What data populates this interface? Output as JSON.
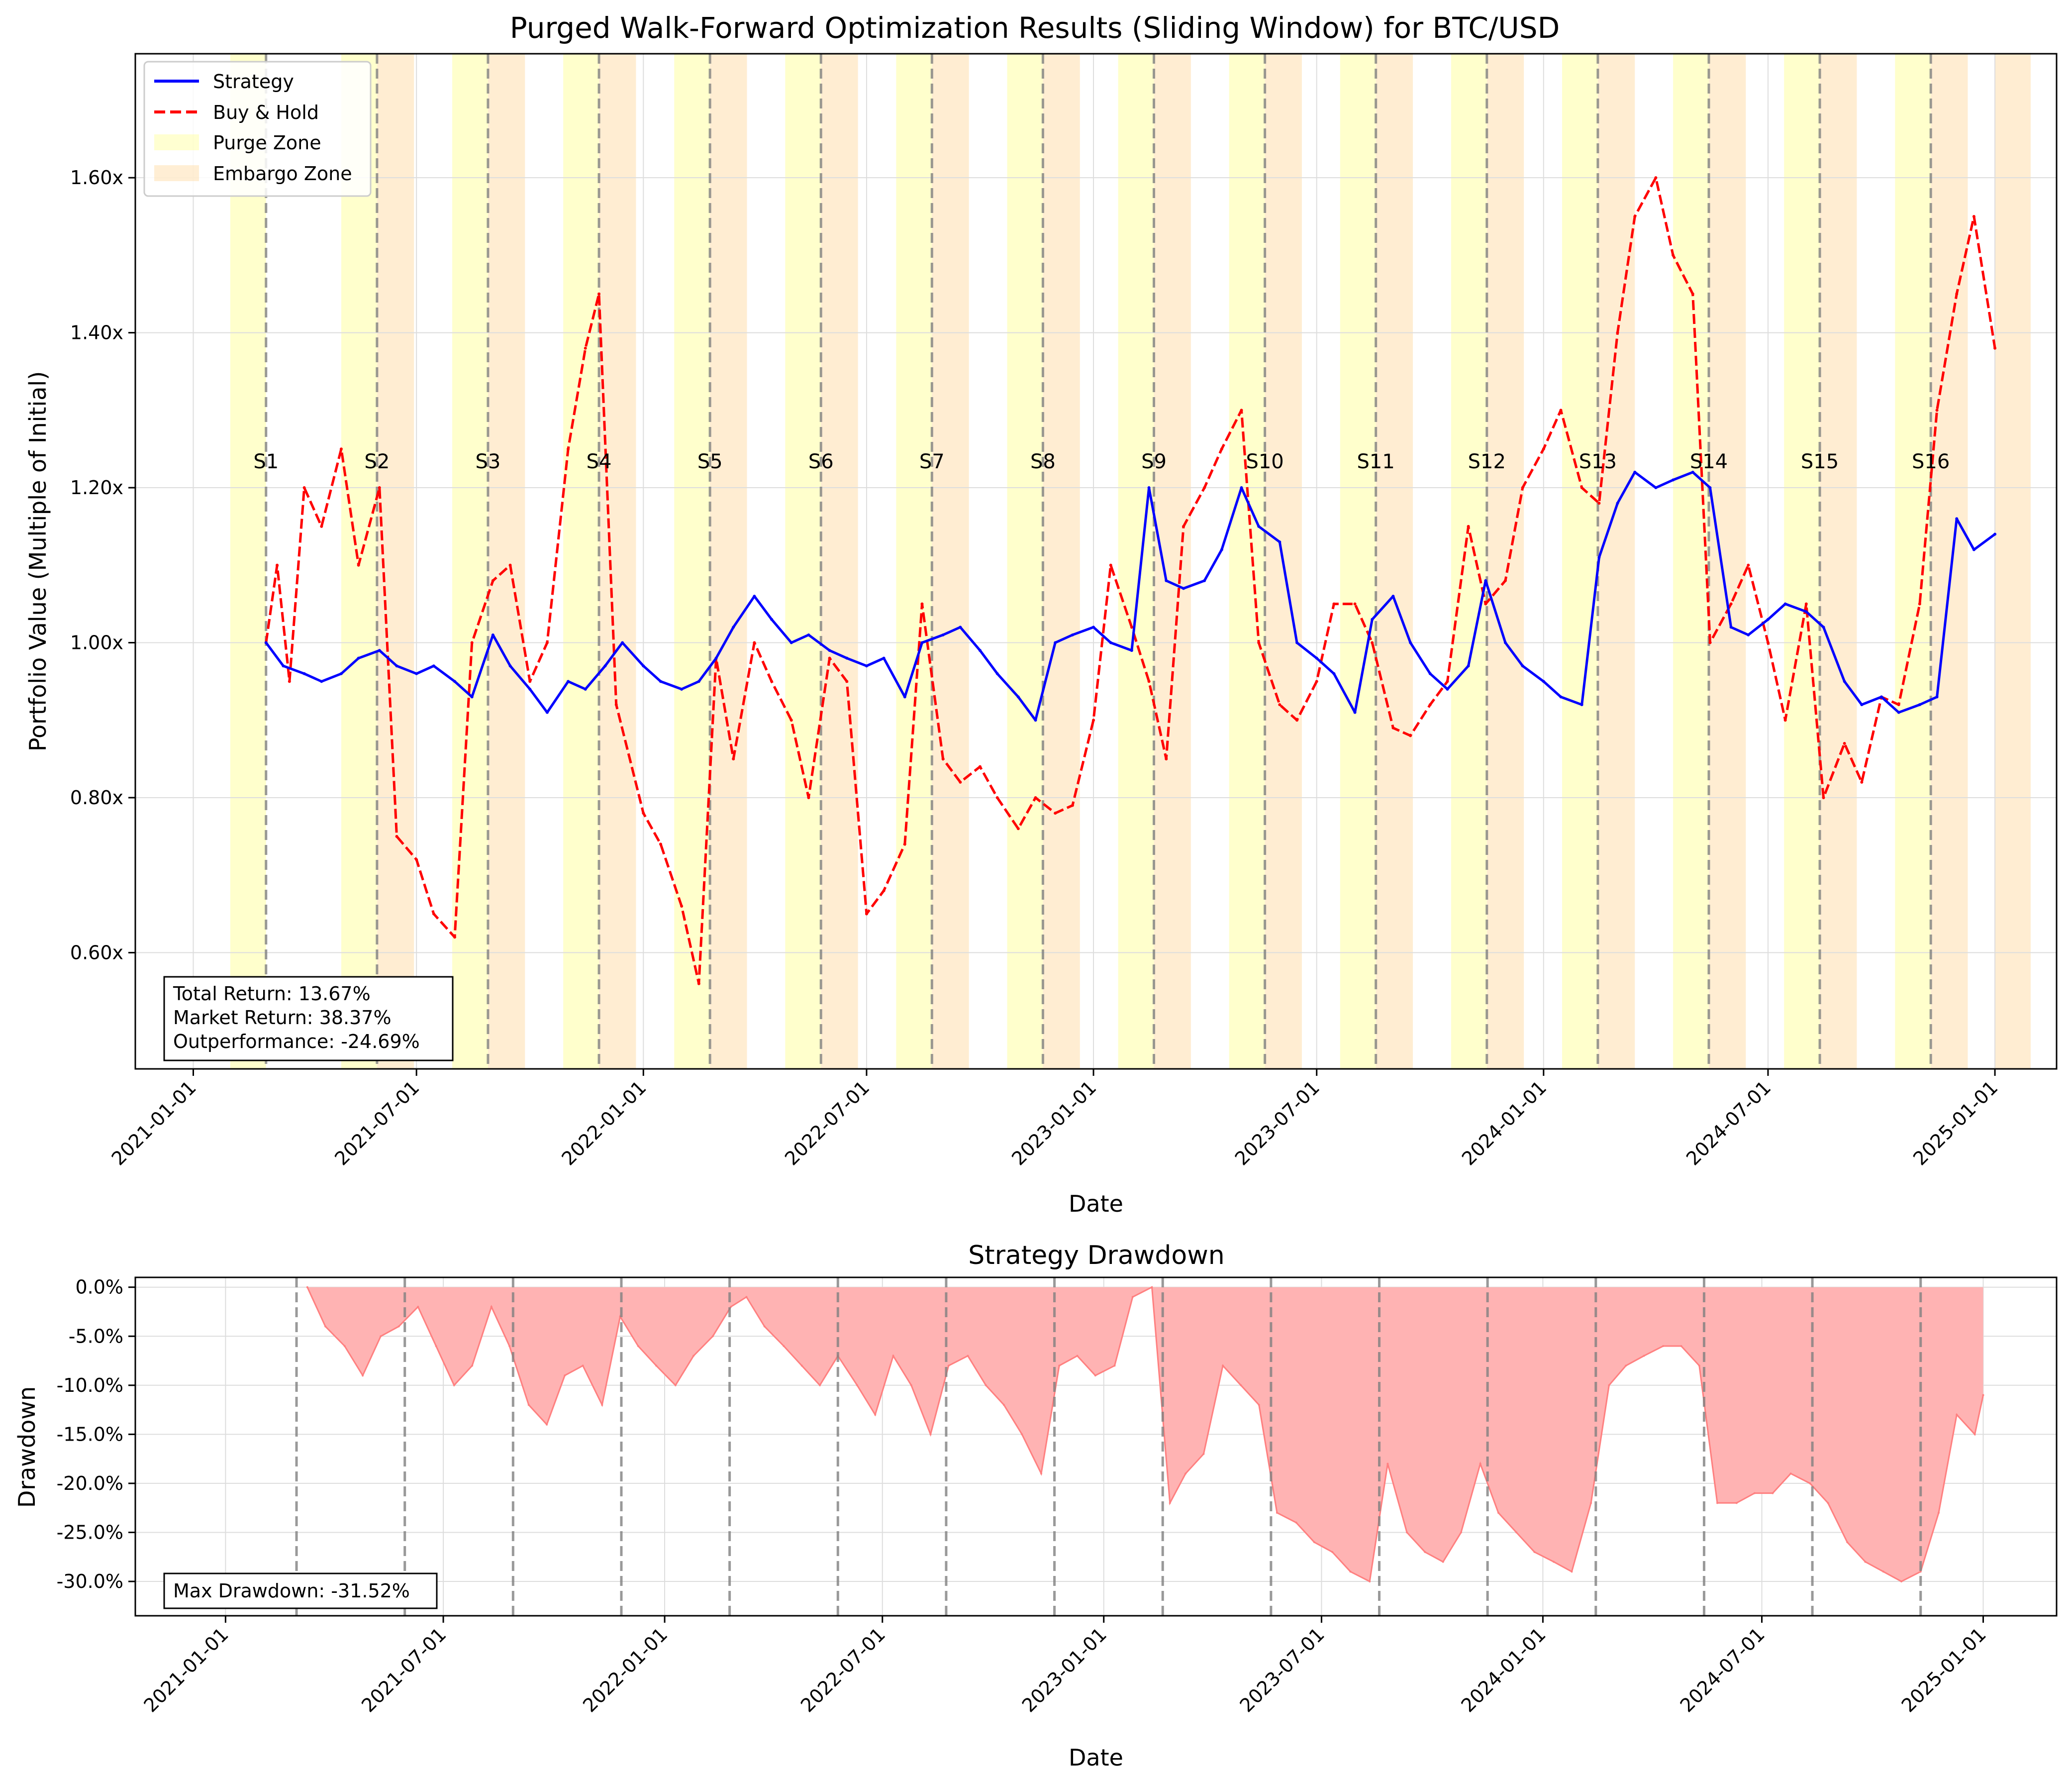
{
  "chart_data": [
    {
      "type": "line",
      "title": "Purged Walk-Forward Optimization Results (Sliding Window) for BTC/USD",
      "xlabel": "Date",
      "ylabel": "Portfolio Value (Multiple of Initial)",
      "x_range": [
        "2020-11-15",
        "2025-02-20"
      ],
      "ylim": [
        0.45,
        1.76
      ],
      "x_ticks": [
        "2021-01-01",
        "2021-07-01",
        "2022-01-01",
        "2022-07-01",
        "2023-01-01",
        "2023-07-01",
        "2024-01-01",
        "2024-07-01",
        "2025-01-01"
      ],
      "y_ticks": [
        0.6,
        0.8,
        1.0,
        1.2,
        1.4,
        1.6
      ],
      "y_tick_labels": [
        "0.60x",
        "0.80x",
        "1.00x",
        "1.20x",
        "1.40x",
        "1.60x"
      ],
      "grid": true,
      "legend_position": "top-left",
      "legend": [
        {
          "label": "Strategy",
          "style": "solid",
          "color": "#0000ff"
        },
        {
          "label": "Buy & Hold",
          "style": "dashed",
          "color": "#ff0000"
        },
        {
          "label": "Purge Zone",
          "style": "patch",
          "color": "#ffff99"
        },
        {
          "label": "Embargo Zone",
          "style": "patch",
          "color": "#ffd9a0"
        }
      ],
      "colors": {
        "strategy": "#0000ff",
        "buy_hold": "#ff0000",
        "purge": "#ffffcc",
        "embargo": "#ffedd2",
        "split_line": "#808080"
      },
      "split_labels": [
        "S1",
        "S2",
        "S3",
        "S4",
        "S5",
        "S6",
        "S7",
        "S8",
        "S9",
        "S10",
        "S11",
        "S12",
        "S13",
        "S14",
        "S15",
        "S16"
      ],
      "split_dates": [
        "2021-03-01",
        "2021-05-30",
        "2021-08-28",
        "2021-11-26",
        "2022-02-24",
        "2022-05-25",
        "2022-08-23",
        "2022-11-21",
        "2023-02-19",
        "2023-05-20",
        "2023-08-18",
        "2023-11-16",
        "2024-02-14",
        "2024-05-14",
        "2024-08-12",
        "2024-11-10"
      ],
      "purge_zones": [
        [
          "2021-01-31",
          "2021-03-01"
        ],
        [
          "2021-05-01",
          "2021-05-30"
        ],
        [
          "2021-07-30",
          "2021-08-28"
        ],
        [
          "2021-10-28",
          "2021-11-26"
        ],
        [
          "2022-01-26",
          "2022-02-24"
        ],
        [
          "2022-04-26",
          "2022-05-25"
        ],
        [
          "2022-07-25",
          "2022-08-23"
        ],
        [
          "2022-10-23",
          "2022-11-21"
        ],
        [
          "2023-01-21",
          "2023-02-19"
        ],
        [
          "2023-04-21",
          "2023-05-20"
        ],
        [
          "2023-07-20",
          "2023-08-18"
        ],
        [
          "2023-10-18",
          "2023-11-16"
        ],
        [
          "2024-01-16",
          "2024-02-14"
        ],
        [
          "2024-04-15",
          "2024-05-14"
        ],
        [
          "2024-07-14",
          "2024-08-12"
        ],
        [
          "2024-10-12",
          "2024-11-10"
        ]
      ],
      "embargo_zones": [
        [
          "2021-05-30",
          "2021-06-29"
        ],
        [
          "2021-08-28",
          "2021-09-27"
        ],
        [
          "2021-11-26",
          "2021-12-26"
        ],
        [
          "2022-02-24",
          "2022-03-26"
        ],
        [
          "2022-05-25",
          "2022-06-24"
        ],
        [
          "2022-08-23",
          "2022-09-22"
        ],
        [
          "2022-11-21",
          "2022-12-21"
        ],
        [
          "2023-02-19",
          "2023-03-21"
        ],
        [
          "2023-05-20",
          "2023-06-19"
        ],
        [
          "2023-08-18",
          "2023-09-17"
        ],
        [
          "2023-11-16",
          "2023-12-16"
        ],
        [
          "2024-02-14",
          "2024-03-15"
        ],
        [
          "2024-05-14",
          "2024-06-13"
        ],
        [
          "2024-08-12",
          "2024-09-11"
        ],
        [
          "2024-11-10",
          "2024-12-10"
        ],
        [
          "2025-01-01",
          "2025-01-30"
        ]
      ],
      "series": [
        {
          "name": "Strategy",
          "x": [
            "2021-03-01",
            "2021-03-15",
            "2021-04-01",
            "2021-04-15",
            "2021-05-01",
            "2021-05-15",
            "2021-06-01",
            "2021-06-15",
            "2021-07-01",
            "2021-07-15",
            "2021-08-01",
            "2021-08-15",
            "2021-09-01",
            "2021-09-15",
            "2021-10-01",
            "2021-10-15",
            "2021-11-01",
            "2021-11-15",
            "2021-12-01",
            "2021-12-15",
            "2022-01-01",
            "2022-01-15",
            "2022-02-01",
            "2022-02-15",
            "2022-03-01",
            "2022-03-15",
            "2022-04-01",
            "2022-04-15",
            "2022-05-01",
            "2022-05-15",
            "2022-06-01",
            "2022-06-15",
            "2022-07-01",
            "2022-07-15",
            "2022-08-01",
            "2022-08-15",
            "2022-09-01",
            "2022-09-15",
            "2022-10-01",
            "2022-10-15",
            "2022-11-01",
            "2022-11-15",
            "2022-12-01",
            "2022-12-15",
            "2023-01-01",
            "2023-01-15",
            "2023-02-01",
            "2023-02-15",
            "2023-03-01",
            "2023-03-15",
            "2023-04-01",
            "2023-04-15",
            "2023-05-01",
            "2023-05-15",
            "2023-06-01",
            "2023-06-15",
            "2023-07-01",
            "2023-07-15",
            "2023-08-01",
            "2023-08-15",
            "2023-09-01",
            "2023-09-15",
            "2023-10-01",
            "2023-10-15",
            "2023-11-01",
            "2023-11-15",
            "2023-12-01",
            "2023-12-15",
            "2024-01-01",
            "2024-01-15",
            "2024-02-01",
            "2024-02-15",
            "2024-03-01",
            "2024-03-15",
            "2024-04-01",
            "2024-04-15",
            "2024-05-01",
            "2024-05-15",
            "2024-06-01",
            "2024-06-15",
            "2024-07-01",
            "2024-07-15",
            "2024-08-01",
            "2024-08-15",
            "2024-09-01",
            "2024-09-15",
            "2024-10-01",
            "2024-10-15",
            "2024-11-01",
            "2024-11-15",
            "2024-12-01",
            "2024-12-15",
            "2025-01-01"
          ],
          "values": [
            1.0,
            0.97,
            0.96,
            0.95,
            0.96,
            0.98,
            0.99,
            0.97,
            0.96,
            0.97,
            0.95,
            0.93,
            1.01,
            0.97,
            0.94,
            0.91,
            0.95,
            0.94,
            0.97,
            1.0,
            0.97,
            0.95,
            0.94,
            0.95,
            0.98,
            1.02,
            1.06,
            1.03,
            1.0,
            1.01,
            0.99,
            0.98,
            0.97,
            0.98,
            0.93,
            1.0,
            1.01,
            1.02,
            0.99,
            0.96,
            0.93,
            0.9,
            1.0,
            1.01,
            1.02,
            1.0,
            0.99,
            1.2,
            1.08,
            1.07,
            1.08,
            1.12,
            1.2,
            1.15,
            1.13,
            1.0,
            0.98,
            0.96,
            0.91,
            1.03,
            1.06,
            1.0,
            0.96,
            0.94,
            0.97,
            1.08,
            1.0,
            0.97,
            0.95,
            0.93,
            0.92,
            1.11,
            1.18,
            1.22,
            1.2,
            1.21,
            1.22,
            1.2,
            1.02,
            1.01,
            1.03,
            1.05,
            1.04,
            1.02,
            0.95,
            0.92,
            0.93,
            0.91,
            0.92,
            0.93,
            1.16,
            1.12,
            1.14
          ]
        },
        {
          "name": "Buy & Hold",
          "x": [
            "2021-03-01",
            "2021-03-10",
            "2021-03-20",
            "2021-04-01",
            "2021-04-15",
            "2021-05-01",
            "2021-05-15",
            "2021-06-01",
            "2021-06-15",
            "2021-07-01",
            "2021-07-15",
            "2021-08-01",
            "2021-08-15",
            "2021-09-01",
            "2021-09-15",
            "2021-10-01",
            "2021-10-15",
            "2021-11-01",
            "2021-11-15",
            "2021-11-26",
            "2021-12-10",
            "2022-01-01",
            "2022-01-15",
            "2022-02-01",
            "2022-02-15",
            "2022-03-01",
            "2022-03-15",
            "2022-04-01",
            "2022-04-15",
            "2022-05-01",
            "2022-05-15",
            "2022-06-01",
            "2022-06-15",
            "2022-07-01",
            "2022-07-15",
            "2022-08-01",
            "2022-08-15",
            "2022-09-01",
            "2022-09-15",
            "2022-10-01",
            "2022-10-15",
            "2022-11-01",
            "2022-11-15",
            "2022-12-01",
            "2022-12-15",
            "2023-01-01",
            "2023-01-15",
            "2023-02-01",
            "2023-02-15",
            "2023-03-01",
            "2023-03-15",
            "2023-04-01",
            "2023-04-15",
            "2023-05-01",
            "2023-05-15",
            "2023-06-01",
            "2023-06-15",
            "2023-07-01",
            "2023-07-15",
            "2023-08-01",
            "2023-08-15",
            "2023-09-01",
            "2023-09-15",
            "2023-10-01",
            "2023-10-15",
            "2023-11-01",
            "2023-11-15",
            "2023-12-01",
            "2023-12-15",
            "2024-01-01",
            "2024-01-15",
            "2024-02-01",
            "2024-02-15",
            "2024-03-01",
            "2024-03-15",
            "2024-04-01",
            "2024-04-15",
            "2024-05-01",
            "2024-05-15",
            "2024-06-01",
            "2024-06-15",
            "2024-07-01",
            "2024-07-15",
            "2024-08-01",
            "2024-08-15",
            "2024-09-01",
            "2024-09-15",
            "2024-10-01",
            "2024-10-15",
            "2024-11-01",
            "2024-11-15",
            "2024-12-01",
            "2024-12-15",
            "2025-01-01"
          ],
          "values": [
            1.0,
            1.1,
            0.95,
            1.2,
            1.15,
            1.25,
            1.1,
            1.2,
            0.75,
            0.72,
            0.65,
            0.62,
            1.0,
            1.08,
            1.1,
            0.95,
            1.0,
            1.25,
            1.38,
            1.45,
            0.92,
            0.78,
            0.74,
            0.66,
            0.56,
            0.98,
            0.85,
            1.0,
            0.95,
            0.9,
            0.8,
            0.98,
            0.95,
            0.65,
            0.68,
            0.74,
            1.05,
            0.85,
            0.82,
            0.84,
            0.8,
            0.76,
            0.8,
            0.78,
            0.79,
            0.9,
            1.1,
            1.02,
            0.95,
            0.85,
            1.15,
            1.2,
            1.25,
            1.3,
            1.0,
            0.92,
            0.9,
            0.95,
            1.05,
            1.05,
            1.0,
            0.89,
            0.88,
            0.92,
            0.95,
            1.15,
            1.05,
            1.08,
            1.2,
            1.25,
            1.3,
            1.2,
            1.18,
            1.4,
            1.55,
            1.6,
            1.5,
            1.45,
            1.0,
            1.05,
            1.1,
            1.0,
            0.9,
            1.05,
            0.8,
            0.87,
            0.82,
            0.93,
            0.92,
            1.05,
            1.3,
            1.45,
            1.55,
            1.38
          ]
        }
      ],
      "annotation": [
        "Total Return: 13.67%",
        "Market Return: 38.37%",
        "Outperformance: -24.69%"
      ]
    },
    {
      "type": "area",
      "title": "Strategy Drawdown",
      "xlabel": "Date",
      "ylabel": "Drawdown",
      "x_range": [
        "2020-10-18",
        "2025-03-03"
      ],
      "ylim": [
        -0.335,
        0.01
      ],
      "x_ticks": [
        "2021-01-01",
        "2021-07-01",
        "2022-01-01",
        "2022-07-01",
        "2023-01-01",
        "2023-07-01",
        "2024-01-01",
        "2024-07-01",
        "2025-01-01"
      ],
      "y_ticks": [
        0.0,
        -0.05,
        -0.1,
        -0.15,
        -0.2,
        -0.25,
        -0.3
      ],
      "y_tick_labels": [
        "0.0%",
        "-5.0%",
        "-10.0%",
        "-15.0%",
        "-20.0%",
        "-25.0%",
        "-30.0%"
      ],
      "grid": true,
      "colors": {
        "fill": "#ffb3b3",
        "line": "#ff8080",
        "split_line": "#808080"
      },
      "split_dates": [
        "2021-03-01",
        "2021-05-30",
        "2021-08-28",
        "2021-11-26",
        "2022-02-24",
        "2022-05-25",
        "2022-08-23",
        "2022-11-21",
        "2023-02-19",
        "2023-05-20",
        "2023-08-18",
        "2023-11-16",
        "2024-02-14",
        "2024-05-14",
        "2024-08-12",
        "2024-11-10"
      ],
      "series": [
        {
          "name": "Drawdown",
          "x": [
            "2021-03-10",
            "2021-03-25",
            "2021-04-10",
            "2021-04-25",
            "2021-05-10",
            "2021-05-25",
            "2021-06-10",
            "2021-06-25",
            "2021-07-10",
            "2021-07-25",
            "2021-08-10",
            "2021-08-25",
            "2021-09-10",
            "2021-09-25",
            "2021-10-10",
            "2021-10-25",
            "2021-11-10",
            "2021-11-25",
            "2021-12-10",
            "2021-12-25",
            "2022-01-10",
            "2022-01-25",
            "2022-02-10",
            "2022-02-25",
            "2022-03-10",
            "2022-03-25",
            "2022-04-10",
            "2022-04-25",
            "2022-05-10",
            "2022-05-25",
            "2022-06-10",
            "2022-06-25",
            "2022-07-10",
            "2022-07-25",
            "2022-08-10",
            "2022-08-25",
            "2022-09-10",
            "2022-09-25",
            "2022-10-10",
            "2022-10-25",
            "2022-11-10",
            "2022-11-25",
            "2022-12-10",
            "2022-12-25",
            "2023-01-10",
            "2023-01-25",
            "2023-02-10",
            "2023-02-25",
            "2023-03-10",
            "2023-03-25",
            "2023-04-10",
            "2023-04-25",
            "2023-05-10",
            "2023-05-25",
            "2023-06-10",
            "2023-06-25",
            "2023-07-10",
            "2023-07-25",
            "2023-08-10",
            "2023-08-25",
            "2023-09-10",
            "2023-09-25",
            "2023-10-10",
            "2023-10-25",
            "2023-11-10",
            "2023-11-25",
            "2023-12-10",
            "2023-12-25",
            "2024-01-10",
            "2024-01-25",
            "2024-02-10",
            "2024-02-25",
            "2024-03-10",
            "2024-03-25",
            "2024-04-10",
            "2024-04-25",
            "2024-05-10",
            "2024-05-25",
            "2024-06-10",
            "2024-06-25",
            "2024-07-10",
            "2024-07-25",
            "2024-08-10",
            "2024-08-25",
            "2024-09-10",
            "2024-09-25",
            "2024-10-10",
            "2024-10-25",
            "2024-11-10",
            "2024-11-25",
            "2024-12-10",
            "2024-12-25",
            "2025-01-01"
          ],
          "values": [
            0.0,
            -0.04,
            -0.06,
            -0.09,
            -0.05,
            -0.04,
            -0.02,
            -0.06,
            -0.1,
            -0.08,
            -0.02,
            -0.06,
            -0.12,
            -0.14,
            -0.09,
            -0.08,
            -0.12,
            -0.03,
            -0.06,
            -0.08,
            -0.1,
            -0.07,
            -0.05,
            -0.02,
            -0.01,
            -0.04,
            -0.06,
            -0.08,
            -0.1,
            -0.07,
            -0.1,
            -0.13,
            -0.07,
            -0.1,
            -0.15,
            -0.08,
            -0.07,
            -0.1,
            -0.12,
            -0.15,
            -0.19,
            -0.08,
            -0.07,
            -0.09,
            -0.08,
            -0.01,
            0.0,
            -0.22,
            -0.19,
            -0.17,
            -0.08,
            -0.1,
            -0.12,
            -0.23,
            -0.24,
            -0.26,
            -0.27,
            -0.29,
            -0.3,
            -0.18,
            -0.25,
            -0.27,
            -0.28,
            -0.25,
            -0.18,
            -0.23,
            -0.25,
            -0.27,
            -0.28,
            -0.29,
            -0.22,
            -0.1,
            -0.08,
            -0.07,
            -0.06,
            -0.06,
            -0.08,
            -0.22,
            -0.22,
            -0.21,
            -0.21,
            -0.19,
            -0.2,
            -0.22,
            -0.26,
            -0.28,
            -0.29,
            -0.3,
            -0.29,
            -0.23,
            -0.13,
            -0.15,
            -0.11
          ]
        }
      ],
      "annotation": [
        "Max Drawdown: -31.52%"
      ]
    }
  ]
}
